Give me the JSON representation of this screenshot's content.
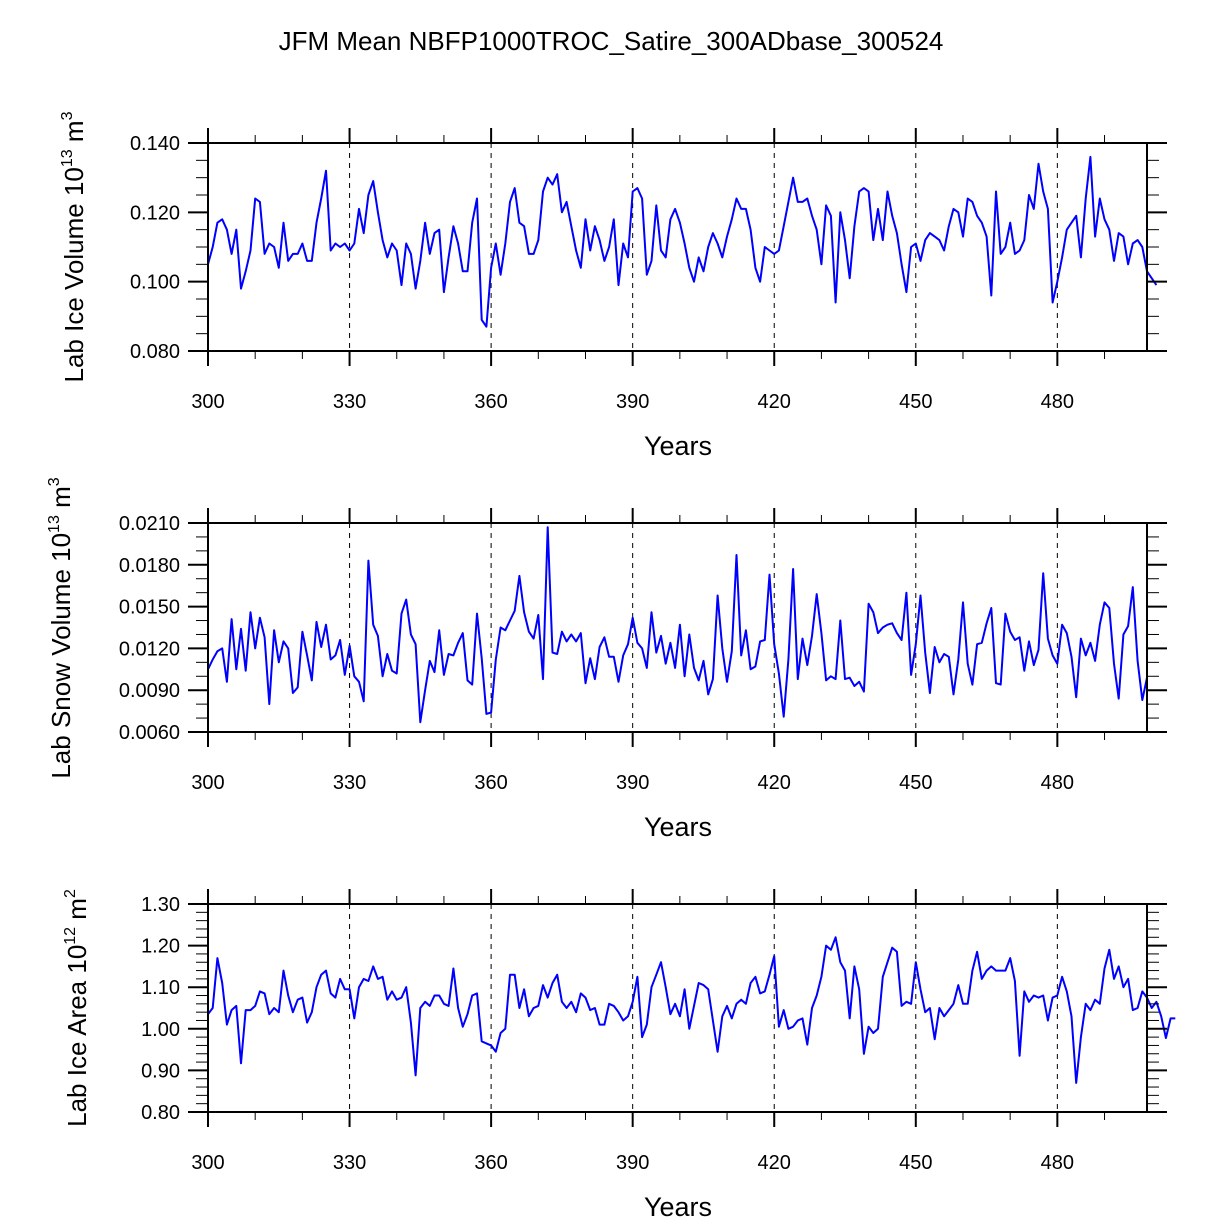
{
  "chart_data": [
    {
      "type": "line",
      "title": "JFM Mean NBFP1000TROC_Satire_300ADbase_300524",
      "ylabel": "Lab Ice Volume 10^13 m^3",
      "ylabel_main": "Lab Ice Volume 10",
      "ylabel_exp": "13",
      "ylabel_unit": "m",
      "ylabel_unit_exp": "3",
      "xlabel": "Years",
      "xlim": [
        300,
        499
      ],
      "ylim": [
        0.08,
        0.14
      ],
      "xticks": [
        "300",
        "330",
        "360",
        "390",
        "420",
        "450",
        "480"
      ],
      "xtick_values": [
        300,
        330,
        360,
        390,
        420,
        450,
        480
      ],
      "yticks": [
        "0.080",
        "0.100",
        "0.120",
        "0.140"
      ],
      "ytick_values": [
        0.08,
        0.1,
        0.12,
        0.14
      ],
      "yminor_step": 0.005,
      "vlines": [
        330,
        360,
        390,
        420,
        450,
        480
      ],
      "line_color": "#0000ff",
      "x_start": 300,
      "values": [
        0.105,
        0.11,
        0.117,
        0.118,
        0.115,
        0.108,
        0.115,
        0.098,
        0.103,
        0.109,
        0.124,
        0.123,
        0.108,
        0.111,
        0.11,
        0.104,
        0.117,
        0.106,
        0.108,
        0.108,
        0.111,
        0.106,
        0.106,
        0.117,
        0.124,
        0.132,
        0.109,
        0.111,
        0.11,
        0.111,
        0.109,
        0.111,
        0.121,
        0.114,
        0.125,
        0.129,
        0.12,
        0.112,
        0.107,
        0.111,
        0.109,
        0.099,
        0.111,
        0.108,
        0.098,
        0.106,
        0.117,
        0.108,
        0.114,
        0.115,
        0.097,
        0.107,
        0.116,
        0.111,
        0.103,
        0.103,
        0.117,
        0.124,
        0.089,
        0.087,
        0.104,
        0.111,
        0.102,
        0.111,
        0.123,
        0.127,
        0.117,
        0.116,
        0.108,
        0.108,
        0.112,
        0.126,
        0.13,
        0.128,
        0.131,
        0.12,
        0.123,
        0.116,
        0.109,
        0.104,
        0.118,
        0.109,
        0.116,
        0.112,
        0.106,
        0.11,
        0.118,
        0.099,
        0.111,
        0.107,
        0.126,
        0.127,
        0.124,
        0.102,
        0.106,
        0.122,
        0.109,
        0.107,
        0.118,
        0.121,
        0.117,
        0.111,
        0.104,
        0.1,
        0.107,
        0.103,
        0.11,
        0.114,
        0.111,
        0.107,
        0.113,
        0.118,
        0.124,
        0.121,
        0.121,
        0.115,
        0.104,
        0.1,
        0.11,
        0.109,
        0.108,
        0.109,
        0.116,
        0.123,
        0.13,
        0.123,
        0.123,
        0.124,
        0.119,
        0.115,
        0.105,
        0.122,
        0.119,
        0.094,
        0.12,
        0.112,
        0.101,
        0.116,
        0.126,
        0.127,
        0.126,
        0.112,
        0.121,
        0.112,
        0.126,
        0.119,
        0.114,
        0.105,
        0.097,
        0.11,
        0.111,
        0.106,
        0.112,
        0.114,
        0.113,
        0.112,
        0.109,
        0.116,
        0.121,
        0.12,
        0.113,
        0.124,
        0.123,
        0.119,
        0.117,
        0.113,
        0.096,
        0.126,
        0.108,
        0.11,
        0.117,
        0.108,
        0.109,
        0.112,
        0.125,
        0.121,
        0.134,
        0.126,
        0.121,
        0.094,
        0.1,
        0.107,
        0.115,
        0.117,
        0.119,
        0.107,
        0.124,
        0.136,
        0.113,
        0.124,
        0.118,
        0.115,
        0.106,
        0.114,
        0.113,
        0.105,
        0.111,
        0.112,
        0.11,
        0.103,
        0.101,
        0.099
      ]
    },
    {
      "type": "line",
      "ylabel": "Lab Snow Volume 10^13 m^3",
      "ylabel_main": "Lab Snow Volume 10",
      "ylabel_exp": "13",
      "ylabel_unit": "m",
      "ylabel_unit_exp": "3",
      "xlabel": "Years",
      "xlim": [
        300,
        499
      ],
      "ylim": [
        0.006,
        0.021
      ],
      "xticks": [
        "300",
        "330",
        "360",
        "390",
        "420",
        "450",
        "480"
      ],
      "xtick_values": [
        300,
        330,
        360,
        390,
        420,
        450,
        480
      ],
      "yticks": [
        "0.0060",
        "0.0090",
        "0.0120",
        "0.0150",
        "0.0180",
        "0.0210"
      ],
      "ytick_values": [
        0.006,
        0.009,
        0.012,
        0.015,
        0.018,
        0.021
      ],
      "yminor_step": 0.001,
      "vlines": [
        330,
        360,
        390,
        420,
        450,
        480
      ],
      "line_color": "#0000ff",
      "x_start": 300,
      "values": [
        0.0105,
        0.0112,
        0.0118,
        0.012,
        0.0096,
        0.0141,
        0.0105,
        0.0134,
        0.0104,
        0.0146,
        0.012,
        0.0142,
        0.0128,
        0.008,
        0.0133,
        0.011,
        0.0125,
        0.012,
        0.0088,
        0.0092,
        0.0132,
        0.0115,
        0.0097,
        0.0139,
        0.0121,
        0.0137,
        0.0112,
        0.0115,
        0.0126,
        0.0101,
        0.0122,
        0.01,
        0.0096,
        0.0082,
        0.0183,
        0.0137,
        0.0129,
        0.01,
        0.0116,
        0.0104,
        0.0102,
        0.0145,
        0.0155,
        0.013,
        0.0123,
        0.0067,
        0.009,
        0.0111,
        0.0103,
        0.0133,
        0.0101,
        0.0116,
        0.0115,
        0.0124,
        0.0131,
        0.0097,
        0.0094,
        0.0145,
        0.0113,
        0.0073,
        0.0074,
        0.0112,
        0.0135,
        0.0133,
        0.014,
        0.0147,
        0.0172,
        0.0146,
        0.0132,
        0.0127,
        0.0144,
        0.0098,
        0.0207,
        0.0117,
        0.0116,
        0.0132,
        0.0125,
        0.013,
        0.0125,
        0.0131,
        0.0095,
        0.0113,
        0.0098,
        0.0121,
        0.0128,
        0.0114,
        0.0114,
        0.0096,
        0.0115,
        0.0123,
        0.0142,
        0.0124,
        0.012,
        0.0106,
        0.0146,
        0.0117,
        0.0129,
        0.0109,
        0.0124,
        0.0106,
        0.0137,
        0.01,
        0.013,
        0.0106,
        0.0097,
        0.0111,
        0.0087,
        0.0098,
        0.0158,
        0.012,
        0.0096,
        0.0118,
        0.0187,
        0.0115,
        0.0133,
        0.0105,
        0.0107,
        0.0125,
        0.0126,
        0.0173,
        0.0123,
        0.0102,
        0.0071,
        0.0112,
        0.0177,
        0.0098,
        0.0127,
        0.0108,
        0.0129,
        0.0159,
        0.0131,
        0.0097,
        0.01,
        0.0098,
        0.014,
        0.0098,
        0.0099,
        0.0093,
        0.0096,
        0.0089,
        0.0152,
        0.0146,
        0.0131,
        0.0135,
        0.0137,
        0.0138,
        0.0131,
        0.0126,
        0.016,
        0.0101,
        0.0123,
        0.0158,
        0.0117,
        0.0088,
        0.0121,
        0.011,
        0.0116,
        0.0114,
        0.0087,
        0.0112,
        0.0153,
        0.0109,
        0.0094,
        0.0123,
        0.0124,
        0.0138,
        0.0149,
        0.0095,
        0.0094,
        0.0145,
        0.0132,
        0.0126,
        0.0128,
        0.0104,
        0.0125,
        0.0108,
        0.0119,
        0.0174,
        0.0127,
        0.0115,
        0.0109,
        0.0137,
        0.0131,
        0.0114,
        0.0085,
        0.0127,
        0.0115,
        0.0124,
        0.0111,
        0.0137,
        0.0153,
        0.0149,
        0.0109,
        0.0084,
        0.013,
        0.0136,
        0.0164,
        0.0111,
        0.0083,
        0.0099
      ]
    },
    {
      "type": "line",
      "ylabel": "Lab Ice Area 10^12 m^2",
      "ylabel_main": "Lab Ice Area 10",
      "ylabel_exp": "12",
      "ylabel_unit": "m",
      "ylabel_unit_exp": "2",
      "xlabel": "Years",
      "xlim": [
        300,
        499
      ],
      "ylim": [
        0.8,
        1.3
      ],
      "xticks": [
        "300",
        "330",
        "360",
        "390",
        "420",
        "450",
        "480"
      ],
      "xtick_values": [
        300,
        330,
        360,
        390,
        420,
        450,
        480
      ],
      "yticks": [
        "0.80",
        "0.90",
        "1.00",
        "1.10",
        "1.20",
        "1.30"
      ],
      "ytick_values": [
        0.8,
        0.9,
        1.0,
        1.1,
        1.2,
        1.3
      ],
      "yminor_step": 0.02,
      "vlines": [
        330,
        360,
        390,
        420,
        450,
        480
      ],
      "line_color": "#0000ff",
      "x_start": 300,
      "values": [
        1.035,
        1.05,
        1.17,
        1.11,
        1.01,
        1.045,
        1.055,
        0.917,
        1.045,
        1.045,
        1.055,
        1.09,
        1.085,
        1.035,
        1.05,
        1.04,
        1.14,
        1.08,
        1.04,
        1.07,
        1.075,
        1.015,
        1.04,
        1.1,
        1.13,
        1.14,
        1.085,
        1.075,
        1.12,
        1.095,
        1.095,
        1.025,
        1.1,
        1.12,
        1.115,
        1.15,
        1.12,
        1.125,
        1.07,
        1.09,
        1.07,
        1.075,
        1.1,
        1.015,
        0.888,
        1.05,
        1.065,
        1.055,
        1.08,
        1.08,
        1.06,
        1.055,
        1.145,
        1.05,
        1.005,
        1.035,
        1.08,
        1.085,
        0.97,
        0.965,
        0.96,
        0.945,
        0.99,
        1.0,
        1.13,
        1.13,
        1.05,
        1.095,
        1.03,
        1.05,
        1.055,
        1.105,
        1.075,
        1.11,
        1.13,
        1.065,
        1.05,
        1.065,
        1.04,
        1.085,
        1.075,
        1.045,
        1.05,
        1.01,
        1.01,
        1.06,
        1.055,
        1.04,
        1.02,
        1.03,
        1.065,
        1.125,
        0.98,
        1.01,
        1.1,
        1.13,
        1.16,
        1.1,
        1.035,
        1.06,
        1.03,
        1.095,
        1.0,
        1.055,
        1.11,
        1.105,
        1.095,
        1.02,
        0.945,
        1.03,
        1.055,
        1.025,
        1.06,
        1.07,
        1.06,
        1.11,
        1.125,
        1.085,
        1.09,
        1.13,
        1.175,
        1.005,
        1.045,
        1.0,
        1.005,
        1.02,
        1.025,
        0.962,
        1.05,
        1.08,
        1.125,
        1.2,
        1.19,
        1.22,
        1.16,
        1.14,
        1.025,
        1.15,
        1.095,
        0.94,
        1.005,
        0.99,
        1.0,
        1.125,
        1.16,
        1.195,
        1.185,
        1.055,
        1.065,
        1.06,
        1.16,
        1.095,
        1.04,
        1.05,
        0.975,
        1.05,
        1.03,
        1.045,
        1.06,
        1.105,
        1.06,
        1.06,
        1.14,
        1.185,
        1.12,
        1.14,
        1.15,
        1.14,
        1.14,
        1.14,
        1.17,
        1.115,
        0.935,
        1.09,
        1.065,
        1.08,
        1.075,
        1.08,
        1.02,
        1.075,
        1.08,
        1.125,
        1.09,
        1.03,
        0.87,
        0.98,
        1.06,
        1.045,
        1.07,
        1.06,
        1.145,
        1.19,
        1.12,
        1.15,
        1.1,
        1.12,
        1.045,
        1.05,
        1.09,
        1.075,
        1.05,
        1.065,
        1.03,
        0.978,
        1.025,
        1.025
      ]
    }
  ]
}
